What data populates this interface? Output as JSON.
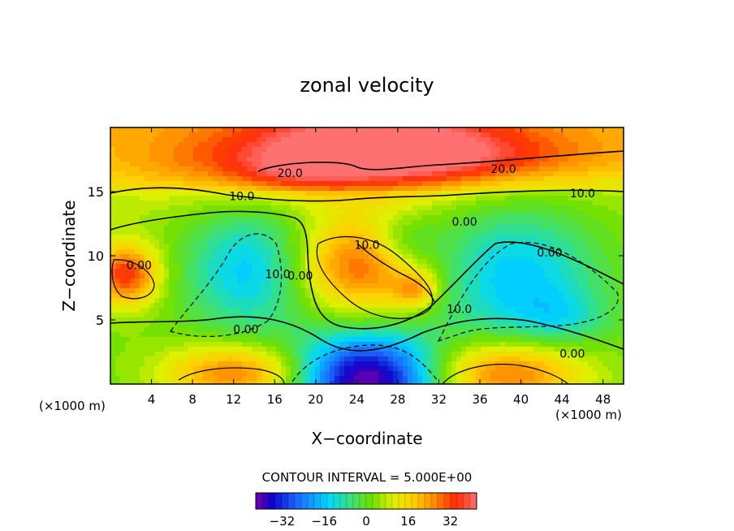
{
  "chart_data": {
    "type": "heatmap",
    "title": "zonal velocity",
    "xlabel": "X−coordinate",
    "ylabel": "Z−coordinate",
    "x_units_label_left": "(×1000 m)",
    "x_units_label_right": "(×1000 m)",
    "xlim": [
      0,
      50
    ],
    "ylim": [
      0,
      20
    ],
    "x_ticks": [
      4,
      8,
      12,
      16,
      20,
      24,
      28,
      32,
      36,
      40,
      44,
      48
    ],
    "y_ticks": [
      5,
      10,
      15
    ],
    "contour_interval_text": "CONTOUR INTERVAL = 5.000E+00",
    "colorbar": {
      "min": -42,
      "max": 42,
      "ticks": [
        -32,
        -16,
        0,
        16,
        32
      ],
      "tick_labels": [
        "−32",
        "−16",
        "0",
        "16",
        "32"
      ]
    },
    "contour_labels": [
      {
        "text": "20.0",
        "x": 17.5,
        "y": 16.4
      },
      {
        "text": "20.0",
        "x": 38.3,
        "y": 16.7
      },
      {
        "text": "10.0",
        "x": 12.8,
        "y": 14.6
      },
      {
        "text": "10.0",
        "x": 46.0,
        "y": 14.8
      },
      {
        "text": "0.00",
        "x": 34.5,
        "y": 12.6
      },
      {
        "text": "10.0",
        "x": 25.0,
        "y": 10.8
      },
      {
        "text": "0.00",
        "x": 2.8,
        "y": 9.2
      },
      {
        "text": "10.0",
        "x": 16.3,
        "y": 8.5
      },
      {
        "text": "0.00",
        "x": 18.5,
        "y": 8.4
      },
      {
        "text": "0.00",
        "x": 42.8,
        "y": 10.2
      },
      {
        "text": "10.0",
        "x": 34.0,
        "y": 5.8
      },
      {
        "text": "0.00",
        "x": 13.2,
        "y": 4.2
      },
      {
        "text": "0.00",
        "x": 45.0,
        "y": 2.3
      }
    ],
    "features": [
      {
        "x": 26,
        "y": 18.5,
        "value": 28,
        "sx": 9,
        "sy": 2.2
      },
      {
        "x": 34,
        "y": 17.5,
        "value": 14,
        "sx": 12,
        "sy": 1.5
      },
      {
        "x": 12,
        "y": 17.0,
        "value": 10,
        "sx": 10,
        "sy": 1.8
      },
      {
        "x": 17.5,
        "y": 16.3,
        "value": 8,
        "sx": 4,
        "sy": 1.0
      },
      {
        "x": 1.5,
        "y": 8.5,
        "value": 30,
        "sx": 2.2,
        "sy": 1.6
      },
      {
        "x": 13.5,
        "y": 9.0,
        "value": -20,
        "sx": 4.5,
        "sy": 3.5
      },
      {
        "x": 24.5,
        "y": 9.2,
        "value": 26,
        "sx": 4.5,
        "sy": 2.6
      },
      {
        "x": 29.8,
        "y": 7.3,
        "value": 16,
        "sx": 1.5,
        "sy": 1.0
      },
      {
        "x": 28.5,
        "y": 11.0,
        "value": -12,
        "sx": 2.5,
        "sy": 1.5
      },
      {
        "x": 39.5,
        "y": 8.5,
        "value": -20,
        "sx": 6,
        "sy": 4
      },
      {
        "x": 44.0,
        "y": 5.2,
        "value": -8,
        "sx": 3,
        "sy": 1.4
      },
      {
        "x": 25.0,
        "y": 0.4,
        "value": -45,
        "sx": 5,
        "sy": 2.5
      },
      {
        "x": 12.5,
        "y": 0.8,
        "value": 26,
        "sx": 5,
        "sy": 1.6
      },
      {
        "x": 38.5,
        "y": 0.8,
        "value": 28,
        "sx": 5.5,
        "sy": 1.8
      }
    ]
  }
}
